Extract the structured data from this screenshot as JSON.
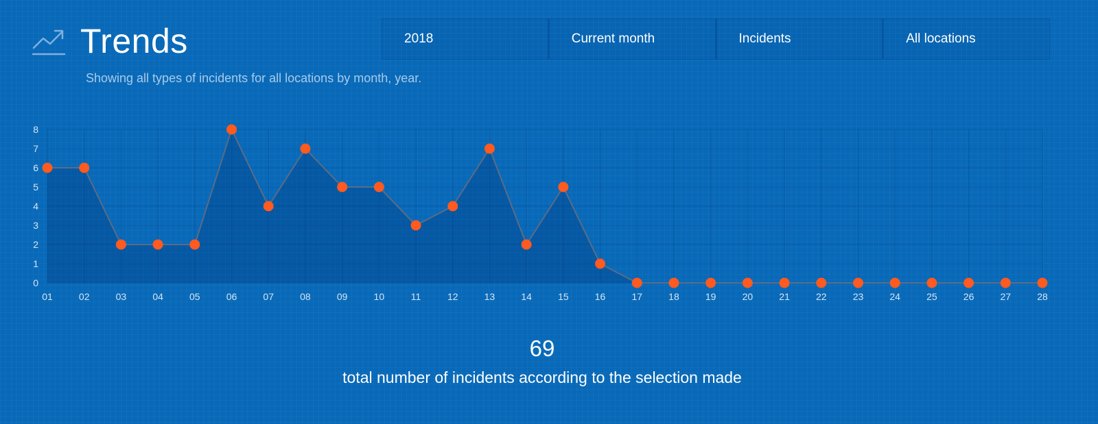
{
  "header": {
    "title": "Trends",
    "subtitle": "Showing all types of incidents for all locations by month, year.",
    "icon": "trend-line-icon"
  },
  "filters": [
    {
      "label": "2018"
    },
    {
      "label": "Current month"
    },
    {
      "label": "Incidents"
    },
    {
      "label": "All locations"
    }
  ],
  "summary": {
    "total": "69",
    "label": "total number of incidents according to the selection made"
  },
  "colors": {
    "background": "#0869b8",
    "line": "#5a6c86",
    "point": "#ff5a1f",
    "area": "#0558a1"
  },
  "chart_data": {
    "type": "area",
    "categories": [
      "01",
      "02",
      "03",
      "04",
      "05",
      "06",
      "07",
      "08",
      "09",
      "10",
      "11",
      "12",
      "13",
      "14",
      "15",
      "16",
      "17",
      "18",
      "19",
      "20",
      "21",
      "22",
      "23",
      "24",
      "25",
      "26",
      "27",
      "28"
    ],
    "series": [
      {
        "values": [
          6,
          6,
          2,
          2,
          2,
          8,
          4,
          7,
          5,
          5,
          3,
          4,
          7,
          2,
          5,
          1,
          0,
          0,
          0,
          0,
          0,
          0,
          0,
          0,
          0,
          0,
          0,
          0
        ]
      }
    ],
    "yticks": [
      0,
      1,
      2,
      3,
      4,
      5,
      6,
      7,
      8
    ],
    "ylim": [
      0,
      8
    ],
    "grid": true,
    "title": "",
    "xlabel": "",
    "ylabel": ""
  }
}
